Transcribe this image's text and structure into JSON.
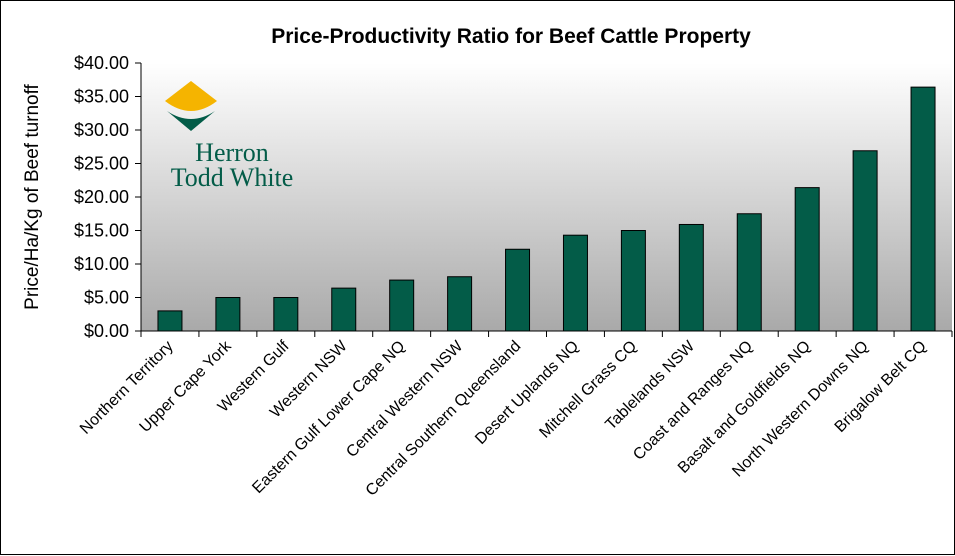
{
  "chart_data": {
    "type": "bar",
    "title": "Price-Productivity Ratio for Beef Cattle Property",
    "xlabel": "",
    "ylabel": "Price/Ha/Kg of Beef turnoff",
    "ylim": [
      0,
      40
    ],
    "yticks": [
      "$0.00",
      "$5.00",
      "$10.00",
      "$15.00",
      "$20.00",
      "$25.00",
      "$30.00",
      "$35.00",
      "$40.00"
    ],
    "grid": false,
    "legend": "none",
    "categories": [
      "Northern Territory",
      "Upper Cape York",
      "Western Gulf",
      "Western NSW",
      "Eastern Gulf Lower Cape NQ",
      "Central Western NSW",
      "Central Southern Queensland",
      "Desert Uplands NQ",
      "Mitchell Grass CQ",
      "Tablelands NSW",
      "Coast and Ranges NQ",
      "Basalt and Goldfields NQ",
      "North Western Downs NQ",
      "Brigalow Belt CQ"
    ],
    "values": [
      3.0,
      5.0,
      5.0,
      6.4,
      7.6,
      8.1,
      12.2,
      14.3,
      15.0,
      15.9,
      17.5,
      21.4,
      26.9,
      36.4
    ],
    "bar_color": "#035C48",
    "plot_gradient_colors": [
      "#ffffff",
      "#a9a9a9"
    ]
  },
  "logo": {
    "line1": "Herron",
    "line2": "Todd White",
    "colors": {
      "top": "#F5B400",
      "bottom": "#035C48",
      "text": "#035C48"
    }
  }
}
